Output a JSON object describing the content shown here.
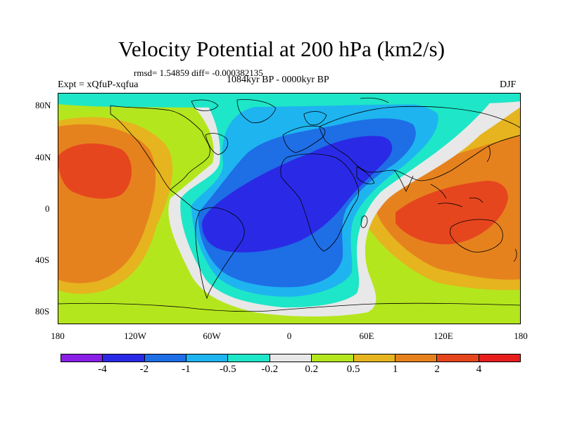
{
  "title": "Velocity Potential at 200 hPa (km2/s)",
  "stats": "rmsd= 1.54859 diff= -0.000382135",
  "experiment": "Expt = xQfuP-xqfua",
  "period": "1084kyr BP - 0000kyr BP",
  "season": "DJF",
  "lat_ticks": [
    "80N",
    "40N",
    "0",
    "40S",
    "80S"
  ],
  "lon_ticks": [
    "180",
    "120W",
    "60W",
    "0",
    "60E",
    "120E",
    "180"
  ],
  "colorbar": {
    "labels": [
      "-4",
      "-2",
      "-1",
      "-0.5",
      "-0.2",
      "0.2",
      "0.5",
      "1",
      "2",
      "4"
    ],
    "colors": [
      "#8a1fe6",
      "#2a2ae6",
      "#1e6ee6",
      "#1eb4f0",
      "#1ee6c8",
      "#e8e8e8",
      "#b4e61e",
      "#e6b41e",
      "#e6821e",
      "#e6461e",
      "#e61e1e"
    ]
  },
  "palette": {
    "level_-4": "#8a1fe6",
    "level_-2": "#2a2ae6",
    "level_-1": "#1e6ee6",
    "level_-0.5": "#1eb4f0",
    "level_-0.2": "#1ee6c8",
    "level_0": "#e8e8e8",
    "level_0.2": "#b4e61e",
    "level_0.5": "#e6b41e",
    "level_1": "#e6821e",
    "level_2": "#e6461e"
  }
}
